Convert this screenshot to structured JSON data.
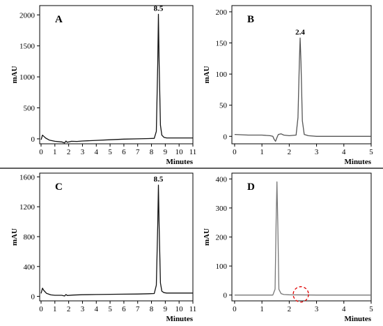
{
  "chart_data": [
    {
      "type": "line",
      "panel_label": "A",
      "xlabel": "Minutes",
      "ylabel": "mAU",
      "xlim": [
        -0.1,
        11
      ],
      "ylim": [
        -80,
        2150
      ],
      "xticks": [
        0,
        1,
        2,
        3,
        4,
        5,
        6,
        7,
        8,
        9,
        10,
        11
      ],
      "yticks": [
        0,
        500,
        1000,
        1500,
        2000
      ],
      "peak_annotation": {
        "x": 8.5,
        "y": 2010,
        "label": "8.5"
      },
      "series": [
        {
          "color": "#111111",
          "x": [
            0,
            0.1,
            0.2,
            0.35,
            0.6,
            1.0,
            1.5,
            1.7,
            1.8,
            1.9,
            2.2,
            2.6,
            3.0,
            4.0,
            5.0,
            6.0,
            7.0,
            7.8,
            8.2,
            8.35,
            8.45,
            8.5,
            8.55,
            8.65,
            8.75,
            8.9,
            9.1,
            10.0,
            11.0
          ],
          "y": [
            -15,
            60,
            40,
            10,
            -20,
            -40,
            -50,
            -65,
            -35,
            -55,
            -40,
            -42,
            -35,
            -25,
            -15,
            -5,
            0,
            5,
            8,
            120,
            1200,
            2010,
            1300,
            220,
            60,
            25,
            15,
            15,
            15
          ]
        }
      ]
    },
    {
      "type": "line",
      "panel_label": "B",
      "xlabel": "Minutes",
      "ylabel": "mAU",
      "xlim": [
        -0.1,
        5
      ],
      "ylim": [
        -12,
        210
      ],
      "xticks": [
        0,
        1,
        2,
        3,
        4,
        5
      ],
      "yticks": [
        0,
        50,
        100,
        150,
        200
      ],
      "peak_annotation": {
        "x": 2.4,
        "y": 158,
        "label": "2.4"
      },
      "series": [
        {
          "color": "#555555",
          "x": [
            0,
            0.5,
            1.0,
            1.3,
            1.4,
            1.45,
            1.5,
            1.55,
            1.6,
            1.7,
            1.8,
            2.0,
            2.25,
            2.32,
            2.37,
            2.4,
            2.43,
            2.48,
            2.55,
            2.7,
            3.0,
            4.0,
            5.0
          ],
          "y": [
            3,
            2,
            2,
            1,
            0,
            -5,
            -8,
            -2,
            3,
            4,
            2,
            1,
            2,
            30,
            120,
            158,
            120,
            25,
            3,
            1,
            0,
            0,
            0
          ]
        }
      ]
    },
    {
      "type": "line",
      "panel_label": "C",
      "xlabel": "Minutes",
      "ylabel": "mAU",
      "xlim": [
        -0.1,
        11
      ],
      "ylim": [
        -60,
        1650
      ],
      "xticks": [
        0,
        1,
        2,
        3,
        4,
        5,
        6,
        7,
        8,
        9,
        10,
        11
      ],
      "yticks": [
        0,
        400,
        800,
        1200,
        1600
      ],
      "peak_annotation": {
        "x": 8.5,
        "y": 1490,
        "label": "8.5"
      },
      "series": [
        {
          "color": "#111111",
          "x": [
            0,
            0.1,
            0.2,
            0.4,
            0.7,
            1.0,
            1.5,
            1.7,
            1.8,
            1.9,
            2.3,
            3.0,
            4.0,
            5.0,
            6.0,
            7.0,
            7.8,
            8.2,
            8.35,
            8.45,
            8.5,
            8.55,
            8.65,
            8.75,
            8.9,
            9.1,
            10.0,
            11.0
          ],
          "y": [
            40,
            110,
            80,
            40,
            20,
            15,
            15,
            5,
            25,
            12,
            18,
            22,
            25,
            28,
            30,
            32,
            35,
            38,
            150,
            950,
            1490,
            1000,
            180,
            70,
            50,
            45,
            45,
            45
          ]
        }
      ]
    },
    {
      "type": "line",
      "panel_label": "D",
      "xlabel": "Minutes",
      "ylabel": "mAU",
      "xlim": [
        -0.1,
        5
      ],
      "ylim": [
        -20,
        420
      ],
      "xticks": [
        0,
        1,
        2,
        3,
        4,
        5
      ],
      "yticks": [
        0,
        100,
        200,
        300,
        400
      ],
      "annotation": {
        "type": "dashed-circle",
        "color": "#e00000",
        "x": 2.4,
        "y": 0
      },
      "series": [
        {
          "color": "#777777",
          "x": [
            0,
            0.5,
            1.0,
            1.4,
            1.48,
            1.52,
            1.55,
            1.58,
            1.62,
            1.7,
            1.8,
            2.0,
            3.0,
            4.0,
            5.0
          ],
          "y": [
            0,
            0,
            0,
            0,
            20,
            250,
            390,
            250,
            20,
            5,
            2,
            1,
            0,
            0,
            0
          ]
        }
      ]
    }
  ]
}
